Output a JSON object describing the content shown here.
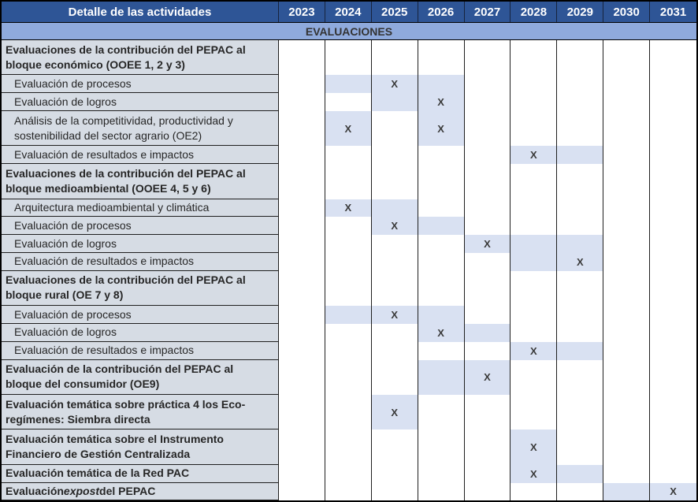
{
  "header": {
    "detail_label": "Detalle de las actividades",
    "years": [
      "2023",
      "2024",
      "2025",
      "2026",
      "2027",
      "2028",
      "2029",
      "2030",
      "2031"
    ]
  },
  "banner": "EVALUACIONES",
  "mark_symbol": "X",
  "colors": {
    "header_bg": "#2E5596",
    "header_text": "#FFFFFF",
    "banner_bg": "#8FAADC",
    "label_bg": "#D6DCE4",
    "shade_bg": "#D9E1F2",
    "grid_line": "#1F1F1F",
    "text": "#262626"
  },
  "rows": [
    {
      "style": "section",
      "lines": 2,
      "label": "Evaluaciones de la contribución del PEPAC al\nbloque económico (OOEE 1, 2 y 3)",
      "cells": {}
    },
    {
      "style": "sub",
      "lines": 1,
      "label": "Evaluación de procesos",
      "cells": {
        "2024": "shaded",
        "2025": "x",
        "2026": "shaded"
      }
    },
    {
      "style": "sub",
      "lines": 1,
      "label": "Evaluación de logros",
      "cells": {
        "2025": "shaded",
        "2026": "x"
      }
    },
    {
      "style": "sub",
      "lines": 2,
      "label": "Análisis de la competitividad, productividad y\nsostenibilidad del sector agrario (OE2)",
      "cells": {
        "2024": "x",
        "2026": "x"
      }
    },
    {
      "style": "sub",
      "lines": 1,
      "label": "Evaluación de resultados e impactos",
      "cells": {
        "2028": "x",
        "2029": "shaded"
      }
    },
    {
      "style": "section",
      "lines": 2,
      "label": "Evaluaciones de la contribución del PEPAC al\nbloque medioambiental (OOEE 4, 5 y 6)",
      "cells": {}
    },
    {
      "style": "sub",
      "lines": 1,
      "label": "Arquitectura medioambiental y climática",
      "cells": {
        "2024": "x",
        "2025": "shaded"
      }
    },
    {
      "style": "sub",
      "lines": 1,
      "label": "Evaluación de procesos",
      "cells": {
        "2025": "x",
        "2026": "shaded"
      }
    },
    {
      "style": "sub",
      "lines": 1,
      "label": "Evaluación de logros",
      "cells": {
        "2027": "x",
        "2028": "shaded",
        "2029": "shaded"
      }
    },
    {
      "style": "sub",
      "lines": 1,
      "label": "Evaluación de resultados e impactos",
      "cells": {
        "2028": "shaded",
        "2029": "x"
      }
    },
    {
      "style": "section",
      "lines": 2,
      "label": "Evaluaciones de la contribución del PEPAC al\nbloque rural (OE 7 y 8)",
      "cells": {}
    },
    {
      "style": "sub",
      "lines": 1,
      "label": "Evaluación de procesos",
      "cells": {
        "2024": "shaded",
        "2025": "x",
        "2026": "shaded"
      }
    },
    {
      "style": "sub",
      "lines": 1,
      "label": "Evaluación de logros",
      "cells": {
        "2026": "x",
        "2027": "shaded"
      }
    },
    {
      "style": "sub",
      "lines": 1,
      "label": "Evaluación de resultados e impactos",
      "cells": {
        "2028": "x",
        "2029": "shaded"
      }
    },
    {
      "style": "section",
      "lines": 2,
      "label": "Evaluación de la contribución del PEPAC al\nbloque del consumidor (OE9)",
      "cells": {
        "2026": "shaded",
        "2027": "x"
      }
    },
    {
      "style": "section",
      "lines": 2,
      "label": "Evaluación temática sobre práctica 4 los Eco-\nregímenes: Siembra directa",
      "cells": {
        "2025": "x"
      }
    },
    {
      "style": "section",
      "lines": 2,
      "label": "Evaluación temática sobre el Instrumento\nFinanciero de Gestión Centralizada",
      "cells": {
        "2028": "x"
      }
    },
    {
      "style": "section",
      "lines": 1,
      "label": "Evaluación temática de la Red PAC",
      "cells": {
        "2028": "x",
        "2029": "shaded"
      }
    },
    {
      "style": "section",
      "lines": 1,
      "label_prefix": "Evaluación ",
      "label_italic": "expost",
      "label_suffix": " del PEPAC",
      "cells": {
        "2030": "shaded",
        "2031": "x"
      }
    }
  ]
}
